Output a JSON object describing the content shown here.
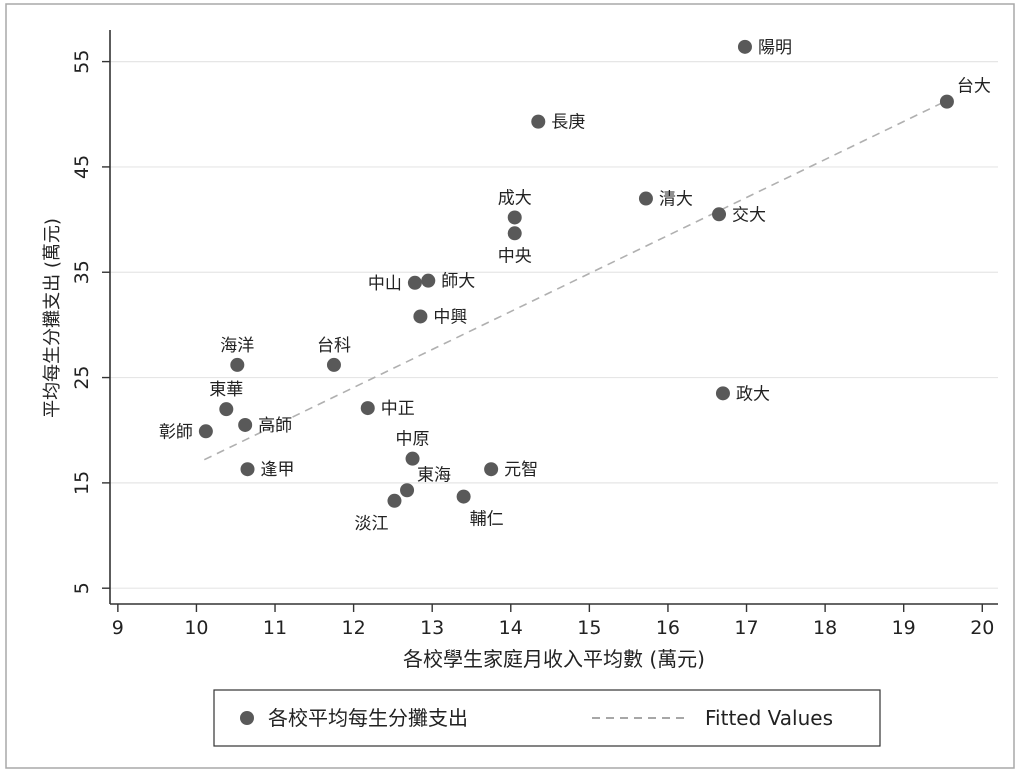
{
  "chart_data": {
    "type": "scatter",
    "xlabel": "各校學生家庭月收入平均數 (萬元)",
    "ylabel": "平均每生分攤支出 (萬元)",
    "xlim": [
      8.9,
      20.2
    ],
    "ylim": [
      3.5,
      58
    ],
    "xticks": [
      9,
      10,
      11,
      12,
      13,
      14,
      15,
      16,
      17,
      18,
      19,
      20
    ],
    "yticks": [
      5,
      15,
      25,
      35,
      45,
      55
    ],
    "grid": "horizontal",
    "legend_position": "bottom",
    "series": [
      {
        "name": "各校平均每生分攤支出",
        "color": "#595959",
        "points": [
          {
            "label": "陽明",
            "x": 16.98,
            "y": 56.4,
            "pos": "right"
          },
          {
            "label": "台大",
            "x": 19.55,
            "y": 51.2,
            "pos": "above-right"
          },
          {
            "label": "長庚",
            "x": 14.35,
            "y": 49.3,
            "pos": "right"
          },
          {
            "label": "成大",
            "x": 14.05,
            "y": 40.2,
            "pos": "above"
          },
          {
            "label": "清大",
            "x": 15.72,
            "y": 42.0,
            "pos": "right"
          },
          {
            "label": "交大",
            "x": 16.65,
            "y": 40.5,
            "pos": "right"
          },
          {
            "label": "中央",
            "x": 14.05,
            "y": 38.7,
            "pos": "below"
          },
          {
            "label": "中山",
            "x": 12.78,
            "y": 34.0,
            "pos": "left"
          },
          {
            "label": "師大",
            "x": 12.95,
            "y": 34.2,
            "pos": "right"
          },
          {
            "label": "中興",
            "x": 12.85,
            "y": 30.8,
            "pos": "right"
          },
          {
            "label": "台科",
            "x": 11.75,
            "y": 26.2,
            "pos": "above"
          },
          {
            "label": "海洋",
            "x": 10.52,
            "y": 26.2,
            "pos": "above"
          },
          {
            "label": "東華",
            "x": 10.38,
            "y": 22.0,
            "pos": "above"
          },
          {
            "label": "中正",
            "x": 12.18,
            "y": 22.1,
            "pos": "right"
          },
          {
            "label": "高師",
            "x": 10.62,
            "y": 20.5,
            "pos": "right"
          },
          {
            "label": "彰師",
            "x": 10.12,
            "y": 19.9,
            "pos": "left"
          },
          {
            "label": "中原",
            "x": 12.75,
            "y": 17.3,
            "pos": "above"
          },
          {
            "label": "逢甲",
            "x": 10.65,
            "y": 16.3,
            "pos": "right"
          },
          {
            "label": "元智",
            "x": 13.75,
            "y": 16.3,
            "pos": "right"
          },
          {
            "label": "東海",
            "x": 12.68,
            "y": 14.3,
            "pos": "above-right"
          },
          {
            "label": "淡江",
            "x": 12.52,
            "y": 13.3,
            "pos": "below-left"
          },
          {
            "label": "輔仁",
            "x": 13.4,
            "y": 13.7,
            "pos": "below-right"
          },
          {
            "label": "政大",
            "x": 16.7,
            "y": 23.5,
            "pos": "right"
          }
        ]
      },
      {
        "name": "Fitted Values",
        "type": "line",
        "style": "dashed",
        "color": "#b0b0b0",
        "x": [
          10.1,
          19.55
        ],
        "y": [
          17.2,
          51.3
        ]
      }
    ]
  }
}
